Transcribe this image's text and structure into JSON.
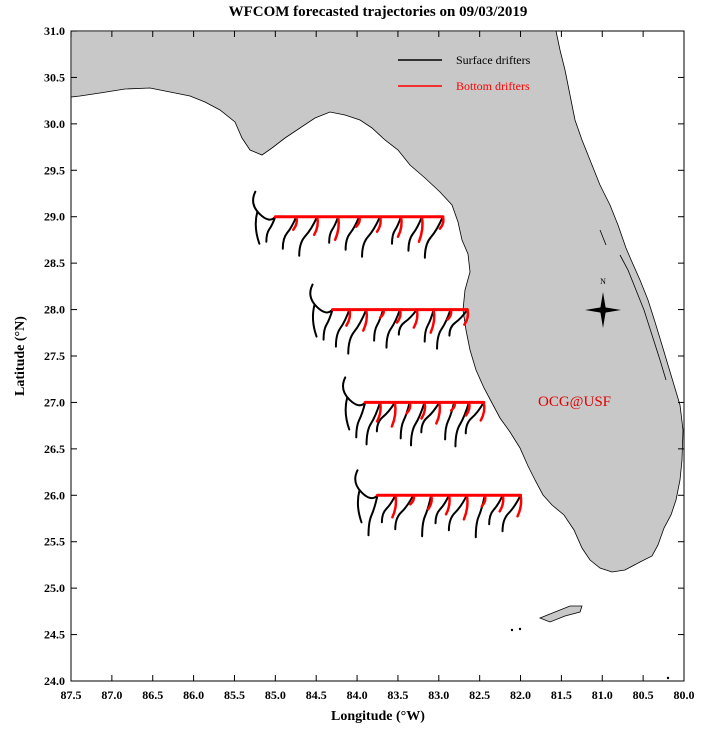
{
  "title": "WFCOM forecasted trajectories on 09/03/2019",
  "xlabel": "Longitude (°W)",
  "ylabel": "Latitude (°N)",
  "x_ticks": [
    "87.5",
    "87.0",
    "86.5",
    "86.0",
    "85.5",
    "85.0",
    "84.5",
    "84.0",
    "83.5",
    "83.0",
    "82.5",
    "82.0",
    "81.5",
    "81.0",
    "80.5",
    "80.0"
  ],
  "y_ticks": [
    "31.0",
    "30.5",
    "30.0",
    "29.5",
    "29.0",
    "28.5",
    "28.0",
    "27.5",
    "27.0",
    "26.5",
    "26.0",
    "25.5",
    "25.0",
    "24.5",
    "24.0"
  ],
  "legend": {
    "surface_label": "Surface drifters",
    "bottom_label": "Bottom drifters"
  },
  "watermark": "OCG@USF",
  "north_arrow_label": "N",
  "colors": {
    "land": "#c8c8c8",
    "surface": "#000000",
    "bottom": "#ff0000",
    "watermark": "#e00000"
  },
  "map_extent": {
    "lon_min": -87.5,
    "lon_max": -80.0,
    "lat_min": 24.0,
    "lat_max": 31.0
  },
  "release_lines": [
    {
      "lat": 29.0,
      "lon_start": -85.0,
      "lon_end": -82.95
    },
    {
      "lat": 28.0,
      "lon_start": -84.3,
      "lon_end": -82.65
    },
    {
      "lat": 27.0,
      "lon_start": -83.9,
      "lon_end": -82.45
    },
    {
      "lat": 26.0,
      "lon_start": -83.75,
      "lon_end": -82.0
    }
  ]
}
